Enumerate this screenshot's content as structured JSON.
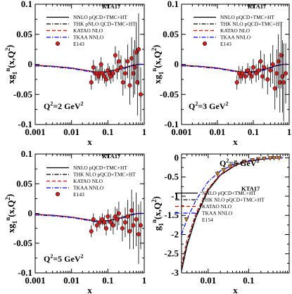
{
  "chart_data": [
    {
      "type": "line",
      "id": "top-left",
      "xscale": "log",
      "xlim": [
        0.001,
        1
      ],
      "ylim": [
        -0.1,
        0.1
      ],
      "xticks": [
        0.001,
        0.01,
        0.1,
        1
      ],
      "xtick_labels": [
        "0.001",
        "0.01",
        "0.1",
        "1"
      ],
      "yticks": [
        -0.1,
        -0.05,
        0,
        0.05,
        0.1
      ],
      "ytick_labels": [
        "-0.1",
        "-0.05",
        "0",
        "0.05",
        "0.1"
      ],
      "xlabel": "x",
      "ylabel": "xg1n(x,Q2)",
      "tag": "KTA17",
      "q2_label": "Q2=2 GeV2",
      "legend": [
        "NNLO pQCD+TMC+HT",
        "THK pNLO QCD+TMC+HT",
        "KATAO NLO",
        "TKAA NNLO",
        "E143"
      ],
      "series": [
        {
          "name": "NNLO pQCD+TMC+HT",
          "style": "solid",
          "color": "#000000",
          "x": [
            0.001,
            0.003,
            0.01,
            0.02,
            0.05,
            0.1,
            0.2,
            0.3,
            0.5,
            0.7,
            0.9
          ],
          "y": [
            -0.0015,
            -0.003,
            -0.006,
            -0.009,
            -0.013,
            -0.012,
            -0.008,
            -0.005,
            -0.001,
            0.0,
            0.0
          ]
        },
        {
          "name": "THK pNLO QCD+TMC+HT",
          "style": "dashdot",
          "color": "#000000",
          "x": [
            0.001,
            0.003,
            0.01,
            0.02,
            0.05,
            0.1,
            0.2,
            0.3,
            0.5,
            0.7,
            0.9
          ],
          "y": [
            -0.002,
            -0.0035,
            -0.0065,
            -0.0095,
            -0.014,
            -0.013,
            -0.009,
            -0.006,
            -0.0015,
            0.0,
            0.0
          ]
        },
        {
          "name": "KATAO NLO",
          "style": "dashed",
          "color": "#ff0000",
          "x": [
            0.001,
            0.003,
            0.01,
            0.02,
            0.05,
            0.1,
            0.2,
            0.3,
            0.5,
            0.7,
            0.9
          ],
          "y": [
            -0.0018,
            -0.0032,
            -0.0062,
            -0.0092,
            -0.0135,
            -0.0125,
            -0.0085,
            -0.0055,
            -0.0012,
            0.0,
            0.0
          ]
        },
        {
          "name": "TKAA NNLO",
          "style": "dashdot",
          "color": "#0000ff",
          "x": [
            0.001,
            0.003,
            0.01,
            0.02,
            0.05,
            0.1,
            0.2,
            0.3,
            0.5,
            0.7,
            0.9
          ],
          "y": [
            -0.0025,
            -0.004,
            -0.007,
            -0.01,
            -0.0145,
            -0.0135,
            -0.0095,
            -0.0062,
            -0.0018,
            0.0,
            0.0
          ]
        }
      ],
      "points": {
        "name": "E143",
        "marker": "circle",
        "color": "#cc2020",
        "x": [
          0.035,
          0.04,
          0.045,
          0.05,
          0.055,
          0.06,
          0.065,
          0.07,
          0.08,
          0.09,
          0.1,
          0.11,
          0.12,
          0.14,
          0.16,
          0.18,
          0.2,
          0.23,
          0.26,
          0.3,
          0.35,
          0.4,
          0.45,
          0.5,
          0.55,
          0.6,
          0.65,
          0.7,
          0.8
        ],
        "y": [
          -0.03,
          -0.005,
          -0.015,
          -0.015,
          -0.02,
          -0.015,
          0.0,
          -0.015,
          -0.02,
          -0.025,
          -0.01,
          -0.015,
          -0.02,
          -0.015,
          0.015,
          -0.01,
          0.005,
          -0.005,
          -0.03,
          -0.015,
          0.005,
          -0.035,
          0.01,
          -0.015,
          -0.005,
          0.02,
          -0.03,
          0.025,
          -0.05
        ],
        "err": [
          0.012,
          0.012,
          0.012,
          0.012,
          0.012,
          0.012,
          0.012,
          0.012,
          0.012,
          0.012,
          0.012,
          0.012,
          0.012,
          0.014,
          0.015,
          0.015,
          0.018,
          0.02,
          0.022,
          0.025,
          0.028,
          0.032,
          0.035,
          0.04,
          0.045,
          0.05,
          0.055,
          0.06,
          0.045
        ]
      }
    },
    {
      "type": "line",
      "id": "top-right",
      "xscale": "log",
      "xlim": [
        0.001,
        1
      ],
      "ylim": [
        -0.1,
        0.1
      ],
      "xticks": [
        0.001,
        0.01,
        0.1,
        1
      ],
      "xtick_labels": [
        "0.001",
        "0.01",
        "0.1",
        "1"
      ],
      "yticks": [
        -0.1,
        -0.05,
        0,
        0.05,
        0.1
      ],
      "ytick_labels": [
        "-0.1",
        "-0.05",
        "0",
        "0.05",
        "0.1"
      ],
      "xlabel": "x",
      "ylabel": "xg1n(x,Q2)",
      "tag": "KTA17",
      "q2_label": "Q2=3 GeV2",
      "legend": [
        "NNLO pQCD+TMC+HT",
        "THK NLO pQCD+TMC+HT",
        "KATAO NLO",
        "TKAA NNLO",
        "E143"
      ],
      "series": [
        {
          "name": "NNLO pQCD+TMC+HT",
          "style": "solid",
          "color": "#000000",
          "x": [
            0.001,
            0.003,
            0.01,
            0.02,
            0.05,
            0.1,
            0.2,
            0.3,
            0.5,
            0.7,
            0.9
          ],
          "y": [
            -0.0015,
            -0.003,
            -0.006,
            -0.009,
            -0.013,
            -0.012,
            -0.008,
            -0.005,
            -0.001,
            0.0,
            0.0
          ]
        },
        {
          "name": "THK NLO pQCD+TMC+HT",
          "style": "dashdot",
          "color": "#000000",
          "x": [
            0.001,
            0.003,
            0.01,
            0.02,
            0.05,
            0.1,
            0.2,
            0.3,
            0.5,
            0.7,
            0.9
          ],
          "y": [
            -0.002,
            -0.0035,
            -0.0065,
            -0.0095,
            -0.014,
            -0.013,
            -0.009,
            -0.006,
            -0.0015,
            0.0,
            0.0
          ]
        },
        {
          "name": "KATAO NLO",
          "style": "dashed",
          "color": "#ff0000",
          "x": [
            0.001,
            0.003,
            0.01,
            0.02,
            0.05,
            0.1,
            0.2,
            0.3,
            0.5,
            0.7,
            0.9
          ],
          "y": [
            -0.0018,
            -0.0032,
            -0.0062,
            -0.0092,
            -0.0135,
            -0.0125,
            -0.0085,
            -0.0055,
            -0.0012,
            0.0,
            0.0
          ]
        },
        {
          "name": "TKAA NNLO",
          "style": "dashdot",
          "color": "#0000ff",
          "x": [
            0.001,
            0.003,
            0.01,
            0.02,
            0.05,
            0.1,
            0.2,
            0.3,
            0.5,
            0.7,
            0.9
          ],
          "y": [
            -0.0025,
            -0.004,
            -0.007,
            -0.01,
            -0.0145,
            -0.0135,
            -0.0095,
            -0.0062,
            -0.0018,
            0.0,
            0.0
          ]
        }
      ],
      "points": {
        "name": "E143",
        "marker": "circle",
        "color": "#cc2020",
        "x": [
          0.035,
          0.04,
          0.045,
          0.05,
          0.06,
          0.07,
          0.08,
          0.09,
          0.1,
          0.12,
          0.14,
          0.16,
          0.18,
          0.2,
          0.25,
          0.3,
          0.35,
          0.4,
          0.45,
          0.5,
          0.55,
          0.6,
          0.65,
          0.7,
          0.8
        ],
        "y": [
          -0.03,
          -0.015,
          -0.02,
          -0.015,
          -0.02,
          -0.01,
          -0.015,
          -0.02,
          -0.005,
          -0.015,
          -0.01,
          0.005,
          -0.02,
          -0.005,
          -0.025,
          -0.01,
          0.0,
          -0.04,
          -0.015,
          0.005,
          -0.03,
          0.015,
          -0.02,
          -0.03,
          -0.015
        ],
        "err": [
          0.012,
          0.012,
          0.012,
          0.012,
          0.012,
          0.012,
          0.012,
          0.012,
          0.014,
          0.015,
          0.016,
          0.018,
          0.02,
          0.022,
          0.025,
          0.028,
          0.032,
          0.035,
          0.04,
          0.045,
          0.05,
          0.055,
          0.06,
          0.065,
          0.05
        ]
      }
    },
    {
      "type": "line",
      "id": "bottom-left",
      "xscale": "log",
      "xlim": [
        0.001,
        1
      ],
      "ylim": [
        -0.1,
        0.1
      ],
      "xticks": [
        0.001,
        0.01,
        0.1,
        1
      ],
      "xtick_labels": [
        "0.001",
        "0.01",
        "0.1",
        "1"
      ],
      "yticks": [
        -0.1,
        -0.05,
        0,
        0.05,
        0.1
      ],
      "ytick_labels": [
        "-0.1",
        "-0.05",
        "0",
        "0.05",
        "0.1"
      ],
      "xlabel": "x",
      "ylabel": "xg1n(x,Q2)",
      "tag": "KTA17",
      "q2_label": "Q2=5 GeV2",
      "legend": [
        "NNLO pQCD+TMC+HT",
        "THK NLO pQCD+TMC+HT",
        "KATAO NLO",
        "TKAA NNLO",
        "E143"
      ],
      "series": [
        {
          "name": "NNLO pQCD+TMC+HT",
          "style": "solid",
          "color": "#000000",
          "x": [
            0.001,
            0.003,
            0.01,
            0.02,
            0.05,
            0.1,
            0.2,
            0.3,
            0.5,
            0.7,
            0.9
          ],
          "y": [
            -0.0015,
            -0.003,
            -0.006,
            -0.009,
            -0.013,
            -0.012,
            -0.008,
            -0.005,
            -0.001,
            0.0,
            0.0
          ]
        },
        {
          "name": "THK NLO pQCD+TMC+HT",
          "style": "dashdot",
          "color": "#000000",
          "x": [
            0.001,
            0.003,
            0.01,
            0.02,
            0.05,
            0.1,
            0.2,
            0.3,
            0.5,
            0.7,
            0.9
          ],
          "y": [
            -0.002,
            -0.0035,
            -0.0065,
            -0.0095,
            -0.014,
            -0.013,
            -0.009,
            -0.006,
            -0.0015,
            0.0,
            0.0
          ]
        },
        {
          "name": "KATAO NLO",
          "style": "dashed",
          "color": "#ff0000",
          "x": [
            0.001,
            0.003,
            0.01,
            0.02,
            0.05,
            0.1,
            0.2,
            0.3,
            0.5,
            0.7,
            0.9
          ],
          "y": [
            -0.0018,
            -0.0032,
            -0.0062,
            -0.0092,
            -0.0135,
            -0.0125,
            -0.0085,
            -0.0055,
            -0.0012,
            0.0,
            0.0
          ]
        },
        {
          "name": "TKAA NNLO",
          "style": "dashdot",
          "color": "#0000ff",
          "x": [
            0.001,
            0.003,
            0.01,
            0.02,
            0.05,
            0.1,
            0.2,
            0.3,
            0.5,
            0.7,
            0.9
          ],
          "y": [
            -0.0025,
            -0.004,
            -0.007,
            -0.01,
            -0.0145,
            -0.0135,
            -0.0095,
            -0.0062,
            -0.0018,
            0.0,
            0.0
          ]
        }
      ],
      "points": {
        "name": "E143",
        "marker": "circle",
        "color": "#cc2020",
        "x": [
          0.035,
          0.04,
          0.05,
          0.06,
          0.07,
          0.08,
          0.09,
          0.1,
          0.12,
          0.14,
          0.16,
          0.18,
          0.2,
          0.25,
          0.3,
          0.35,
          0.4,
          0.45,
          0.5,
          0.6,
          0.7,
          0.8
        ],
        "y": [
          -0.03,
          -0.01,
          -0.02,
          -0.015,
          -0.01,
          -0.015,
          -0.025,
          -0.005,
          -0.015,
          -0.02,
          -0.005,
          -0.01,
          0.0,
          -0.025,
          -0.015,
          -0.005,
          -0.03,
          0.005,
          -0.02,
          -0.01,
          -0.035,
          -0.02
        ],
        "err": [
          0.01,
          0.01,
          0.01,
          0.01,
          0.01,
          0.012,
          0.012,
          0.012,
          0.014,
          0.015,
          0.016,
          0.018,
          0.02,
          0.022,
          0.025,
          0.028,
          0.03,
          0.035,
          0.04,
          0.045,
          0.05,
          0.04
        ]
      }
    },
    {
      "type": "line",
      "id": "bottom-right",
      "xscale": "log",
      "xlim": [
        0.0022,
        1
      ],
      "ylim": [
        -3,
        0.1
      ],
      "xticks": [
        0.01,
        0.1
      ],
      "xtick_labels": [
        "0.01",
        "0.1"
      ],
      "yticks": [
        -3,
        -2.5,
        -2,
        -1.5,
        -1,
        -0.5,
        0
      ],
      "ytick_labels": [
        "-3",
        "-2.5",
        "-2",
        "-1.5",
        "-1",
        "-0.5",
        "0"
      ],
      "xlabel": "x",
      "ylabel": "g1n(x,Q2)",
      "tag": "KTA17",
      "q2_label": "Q2=5 GeV2",
      "legend": [
        "NNLO pQCD+TMC+HT",
        "THK NLO pQCD+TMC+HT",
        "KATAO NLO",
        "TKAA NNLO",
        "E154"
      ],
      "series": [
        {
          "name": "NNLO pQCD+TMC+HT",
          "style": "solid",
          "color": "#000000",
          "x": [
            0.0022,
            0.003,
            0.005,
            0.01,
            0.02,
            0.05,
            0.1,
            0.2,
            0.4,
            0.7
          ],
          "y": [
            -2.95,
            -2.3,
            -1.55,
            -0.85,
            -0.45,
            -0.18,
            -0.09,
            -0.04,
            -0.01,
            0.0
          ]
        },
        {
          "name": "THK NLO pQCD+TMC+HT",
          "style": "dashdot",
          "color": "#000000",
          "x": [
            0.0022,
            0.003,
            0.005,
            0.01,
            0.02,
            0.05,
            0.1,
            0.2,
            0.4,
            0.7
          ],
          "y": [
            -2.9,
            -2.25,
            -1.5,
            -0.82,
            -0.44,
            -0.17,
            -0.085,
            -0.038,
            -0.01,
            0.0
          ]
        },
        {
          "name": "KATAO NLO",
          "style": "dashed",
          "color": "#cc0000",
          "x": [
            0.0022,
            0.003,
            0.005,
            0.01,
            0.02,
            0.05,
            0.1,
            0.2,
            0.4,
            0.7
          ],
          "y": [
            -2.8,
            -2.15,
            -1.45,
            -0.8,
            -0.43,
            -0.17,
            -0.085,
            -0.04,
            -0.01,
            0.0
          ]
        },
        {
          "name": "TKAA NNLO",
          "style": "dashdot",
          "color": "#0000ff",
          "x": [
            0.0022,
            0.003,
            0.005,
            0.01,
            0.02,
            0.05,
            0.1,
            0.2,
            0.4,
            0.7
          ],
          "y": [
            -2.0,
            -1.6,
            -1.1,
            -0.62,
            -0.34,
            -0.14,
            -0.07,
            -0.03,
            -0.008,
            0.0
          ]
        }
      ],
      "points": {
        "name": "E154",
        "marker": "triangle-down",
        "color": "#c87d2a",
        "x": [
          0.017,
          0.024,
          0.035,
          0.049,
          0.078,
          0.123,
          0.173,
          0.241,
          0.34,
          0.423,
          0.564
        ],
        "y": [
          -0.42,
          -0.32,
          -0.23,
          -0.17,
          -0.1,
          -0.06,
          -0.035,
          -0.02,
          -0.01,
          -0.005,
          -0.005
        ],
        "err": [
          0.08,
          0.06,
          0.04,
          0.03,
          0.02,
          0.015,
          0.012,
          0.01,
          0.01,
          0.01,
          0.012
        ]
      }
    }
  ]
}
